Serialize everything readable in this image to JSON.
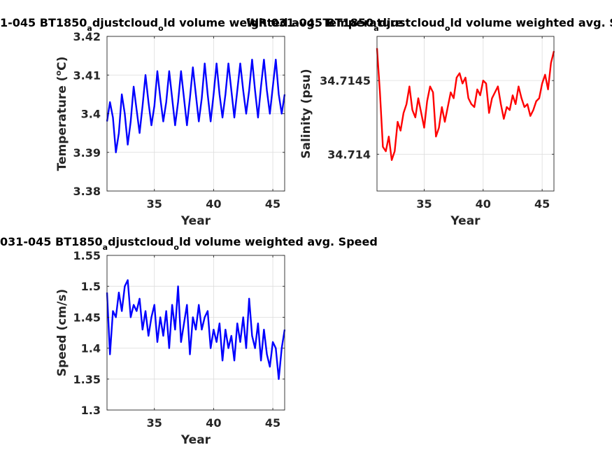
{
  "chart_data": [
    {
      "type": "line",
      "title_main": "1-045 BT1850",
      "title_sub": "a",
      "title_mid": "djustcloud",
      "title_sub2": "o",
      "title_end": "ld volume weighted avg. Temperature",
      "xlabel": "Year",
      "ylabel_prefix": "Temperature (",
      "ylabel_sup": "o",
      "ylabel_suffix": "C)",
      "xlim": [
        31,
        46
      ],
      "ylim": [
        3.38,
        3.42
      ],
      "xticks": [
        35,
        40,
        45
      ],
      "yticks": [
        3.38,
        3.39,
        3.4,
        3.41,
        3.42
      ],
      "ytick_labels": [
        "3.38",
        "3.39",
        "3.4",
        "3.41",
        "3.42"
      ],
      "grid": true,
      "series": [
        {
          "color": "#0000ff",
          "x": [
            31.0,
            31.25,
            31.5,
            31.75,
            32.0,
            32.25,
            32.5,
            32.75,
            33.0,
            33.25,
            33.5,
            33.75,
            34.0,
            34.25,
            34.5,
            34.75,
            35.0,
            35.25,
            35.5,
            35.75,
            36.0,
            36.25,
            36.5,
            36.75,
            37.0,
            37.25,
            37.5,
            37.75,
            38.0,
            38.25,
            38.5,
            38.75,
            39.0,
            39.25,
            39.5,
            39.75,
            40.0,
            40.25,
            40.5,
            40.75,
            41.0,
            41.25,
            41.5,
            41.75,
            42.0,
            42.25,
            42.5,
            42.75,
            43.0,
            43.25,
            43.5,
            43.75,
            44.0,
            44.25,
            44.5,
            44.75,
            45.0,
            45.25,
            45.5,
            45.75,
            46.0
          ],
          "y": [
            3.398,
            3.403,
            3.399,
            3.39,
            3.395,
            3.405,
            3.4,
            3.392,
            3.398,
            3.407,
            3.401,
            3.395,
            3.402,
            3.41,
            3.403,
            3.397,
            3.402,
            3.411,
            3.404,
            3.398,
            3.403,
            3.411,
            3.404,
            3.397,
            3.403,
            3.411,
            3.404,
            3.397,
            3.404,
            3.412,
            3.405,
            3.398,
            3.404,
            3.413,
            3.405,
            3.398,
            3.405,
            3.413,
            3.405,
            3.399,
            3.405,
            3.413,
            3.406,
            3.399,
            3.406,
            3.413,
            3.406,
            3.4,
            3.406,
            3.414,
            3.406,
            3.399,
            3.407,
            3.414,
            3.406,
            3.4,
            3.407,
            3.414,
            3.405,
            3.4,
            3.405
          ]
        }
      ]
    },
    {
      "type": "line",
      "title_main": "WR 031-045 BT1850",
      "title_sub": "a",
      "title_mid": "djustcloud",
      "title_sub2": "o",
      "title_end": "ld volume weighted avg. Salinity",
      "xlabel": "Year",
      "ylabel": "Salinity (psu)",
      "xlim": [
        31,
        46
      ],
      "ylim": [
        34.71375,
        34.7148
      ],
      "xticks": [
        35,
        40,
        45
      ],
      "yticks": [
        34.714,
        34.7145
      ],
      "ytick_labels": [
        "34.714",
        "34.7145"
      ],
      "grid": true,
      "series": [
        {
          "color": "#ff0000",
          "x": [
            31.0,
            31.25,
            31.5,
            31.75,
            32.0,
            32.25,
            32.5,
            32.75,
            33.0,
            33.25,
            33.5,
            33.75,
            34.0,
            34.25,
            34.5,
            34.75,
            35.0,
            35.25,
            35.5,
            35.75,
            36.0,
            36.25,
            36.5,
            36.75,
            37.0,
            37.25,
            37.5,
            37.75,
            38.0,
            38.25,
            38.5,
            38.75,
            39.0,
            39.25,
            39.5,
            39.75,
            40.0,
            40.25,
            40.5,
            40.75,
            41.0,
            41.25,
            41.5,
            41.75,
            42.0,
            42.25,
            42.5,
            42.75,
            43.0,
            43.25,
            43.5,
            43.75,
            44.0,
            44.25,
            44.5,
            44.75,
            45.0,
            45.25,
            45.5,
            45.75,
            46.0
          ],
          "y": [
            34.71472,
            34.71442,
            34.71405,
            34.71402,
            34.71412,
            34.71396,
            34.71402,
            34.71422,
            34.71416,
            34.71428,
            34.71434,
            34.71446,
            34.7143,
            34.71425,
            34.71438,
            34.71428,
            34.71418,
            34.71436,
            34.71446,
            34.71442,
            34.71412,
            34.71418,
            34.71432,
            34.71422,
            34.71432,
            34.71442,
            34.71438,
            34.71452,
            34.71455,
            34.71448,
            34.71452,
            34.71438,
            34.71434,
            34.71432,
            34.71444,
            34.7144,
            34.7145,
            34.71448,
            34.71428,
            34.71438,
            34.71442,
            34.71446,
            34.71434,
            34.71424,
            34.71432,
            34.7143,
            34.7144,
            34.71434,
            34.71446,
            34.71438,
            34.71432,
            34.71434,
            34.71426,
            34.7143,
            34.71436,
            34.71438,
            34.71448,
            34.71454,
            34.71444,
            34.71462,
            34.7147
          ]
        }
      ]
    },
    {
      "type": "line",
      "title_main": "031-045 BT1850",
      "title_sub": "a",
      "title_mid": "djustcloud",
      "title_sub2": "o",
      "title_end": "ld volume weighted avg. Speed",
      "xlabel": "Year",
      "ylabel": "Speed (cm/s)",
      "xlim": [
        31,
        46
      ],
      "ylim": [
        1.3,
        1.55
      ],
      "xticks": [
        35,
        40,
        45
      ],
      "yticks": [
        1.3,
        1.35,
        1.4,
        1.45,
        1.5,
        1.55
      ],
      "ytick_labels": [
        "1.3",
        "1.35",
        "1.4",
        "1.45",
        "1.5",
        "1.55"
      ],
      "grid": true,
      "series": [
        {
          "color": "#0000ff",
          "x": [
            31.0,
            31.25,
            31.5,
            31.75,
            32.0,
            32.25,
            32.5,
            32.75,
            33.0,
            33.25,
            33.5,
            33.75,
            34.0,
            34.25,
            34.5,
            34.75,
            35.0,
            35.25,
            35.5,
            35.75,
            36.0,
            36.25,
            36.5,
            36.75,
            37.0,
            37.25,
            37.5,
            37.75,
            38.0,
            38.25,
            38.5,
            38.75,
            39.0,
            39.25,
            39.5,
            39.75,
            40.0,
            40.25,
            40.5,
            40.75,
            41.0,
            41.25,
            41.5,
            41.75,
            42.0,
            42.25,
            42.5,
            42.75,
            43.0,
            43.25,
            43.5,
            43.75,
            44.0,
            44.25,
            44.5,
            44.75,
            45.0,
            45.25,
            45.5,
            45.75,
            46.0
          ],
          "y": [
            1.49,
            1.39,
            1.46,
            1.45,
            1.49,
            1.46,
            1.5,
            1.51,
            1.45,
            1.47,
            1.46,
            1.48,
            1.43,
            1.46,
            1.42,
            1.45,
            1.47,
            1.41,
            1.45,
            1.42,
            1.46,
            1.4,
            1.47,
            1.43,
            1.5,
            1.41,
            1.44,
            1.47,
            1.39,
            1.45,
            1.43,
            1.47,
            1.43,
            1.45,
            1.46,
            1.4,
            1.43,
            1.41,
            1.44,
            1.38,
            1.43,
            1.4,
            1.42,
            1.38,
            1.44,
            1.41,
            1.45,
            1.4,
            1.48,
            1.42,
            1.4,
            1.44,
            1.38,
            1.43,
            1.39,
            1.37,
            1.41,
            1.4,
            1.35,
            1.4,
            1.43
          ]
        }
      ]
    }
  ]
}
